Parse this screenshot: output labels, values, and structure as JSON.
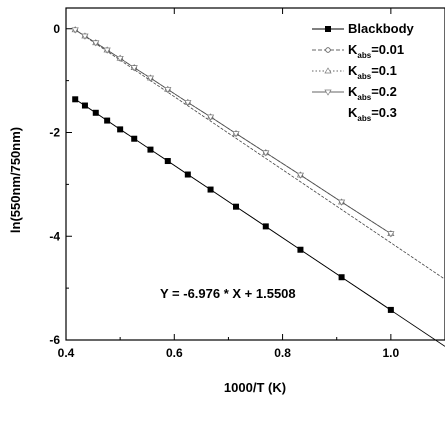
{
  "chart_data": {
    "type": "line",
    "xlabel": "1000/T (K)",
    "ylabel": "ln(550nm/750nm)",
    "xlim": [
      0.4,
      1.1
    ],
    "ylim": [
      -6,
      0.4
    ],
    "xticks": [
      0.4,
      0.6,
      0.8,
      1.0
    ],
    "yticks": [
      0,
      -2,
      -4,
      -6
    ],
    "xtick_labels": [
      "0.4",
      "0.6",
      "0.8",
      "1.0"
    ],
    "ytick_labels": [
      "0",
      "-2",
      "-4",
      "-6"
    ],
    "annotation": "Y = -6.976 * X + 1.5508",
    "legend_position": "top-right",
    "series": [
      {
        "name": "Blackbody",
        "marker": "filled-square",
        "style": "solid",
        "x": [
          0.417,
          0.435,
          0.455,
          0.476,
          0.5,
          0.526,
          0.556,
          0.588,
          0.625,
          0.667,
          0.714,
          0.769,
          0.833,
          0.909,
          1.0
        ],
        "y": [
          -1.36,
          -1.48,
          -1.62,
          -1.77,
          -1.94,
          -2.12,
          -2.33,
          -2.55,
          -2.81,
          -3.1,
          -3.43,
          -3.81,
          -4.26,
          -4.79,
          -5.42
        ]
      },
      {
        "name": "K_abs=0.01",
        "label_main": "K",
        "label_sub": "abs",
        "label_tail": "=0.01",
        "marker": "open-circle",
        "style": "dashed",
        "x": [
          0.417,
          0.435,
          0.455,
          0.476,
          0.5,
          0.526,
          0.556,
          0.588,
          0.625,
          0.667,
          0.714,
          0.769,
          0.833,
          0.909,
          1.0
        ],
        "y": [
          -0.02,
          -0.14,
          -0.27,
          -0.41,
          -0.57,
          -0.75,
          -0.95,
          -1.17,
          -1.42,
          -1.7,
          -2.02,
          -2.39,
          -2.82,
          -3.34,
          -3.95
        ]
      },
      {
        "name": "K_abs=0.1",
        "label_main": "K",
        "label_sub": "abs",
        "label_tail": "=0.1",
        "marker": "open-triangle-up",
        "style": "dotted",
        "x": [
          0.417,
          0.435,
          0.455,
          0.476,
          0.5,
          0.526,
          0.556,
          0.588,
          0.625,
          0.667,
          0.714,
          0.769,
          0.833,
          0.909,
          1.0
        ],
        "y": [
          -0.02,
          -0.14,
          -0.27,
          -0.41,
          -0.57,
          -0.75,
          -0.95,
          -1.17,
          -1.42,
          -1.7,
          -2.02,
          -2.39,
          -2.82,
          -3.34,
          -3.95
        ]
      },
      {
        "name": "K_abs=0.2",
        "label_main": "K",
        "label_sub": "abs",
        "label_tail": "=0.2",
        "marker": "open-triangle-down",
        "style": "solid",
        "x": [
          0.417,
          0.435,
          0.455,
          0.476,
          0.5,
          0.526,
          0.556,
          0.588,
          0.625,
          0.667,
          0.714,
          0.769,
          0.833,
          0.909,
          1.0
        ],
        "y": [
          -0.02,
          -0.14,
          -0.27,
          -0.41,
          -0.57,
          -0.75,
          -0.95,
          -1.17,
          -1.42,
          -1.7,
          -2.02,
          -2.39,
          -2.82,
          -3.34,
          -3.95
        ]
      },
      {
        "name": "K_abs=0.3",
        "label_main": "K",
        "label_sub": "abs",
        "label_tail": "=0.3",
        "marker": "none",
        "style": "none",
        "x": [],
        "y": []
      }
    ]
  }
}
